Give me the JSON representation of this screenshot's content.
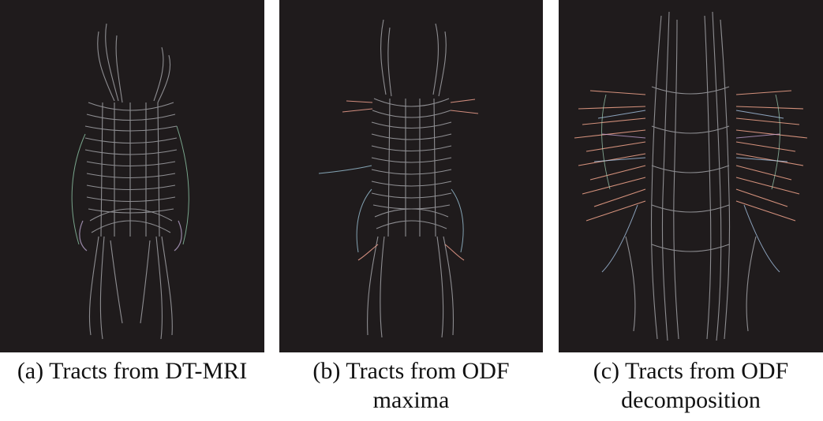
{
  "figure": {
    "panels": [
      {
        "id": "a",
        "caption_line1": "(a) Tracts from DT-MRI",
        "caption_line2": "",
        "palette": {
          "background": "#1f1b1c",
          "fiber": "#9a9a9e",
          "accents": [
            "#8fc7a8",
            "#b7a3c9",
            "#e8b2a5"
          ]
        }
      },
      {
        "id": "b",
        "caption_line1": "(b) Tracts from ODF",
        "caption_line2": "maxima",
        "palette": {
          "background": "#1f1b1c",
          "fiber": "#9a9a9e",
          "accents": [
            "#f0a08e",
            "#9cc4d8",
            "#e9d59a"
          ]
        }
      },
      {
        "id": "c",
        "caption_line1": "(c) Tracts from ODF",
        "caption_line2": "decomposition",
        "palette": {
          "background": "#1f1b1c",
          "fiber": "#9a9a9e",
          "accents": [
            "#f3a58c",
            "#a7c6e6",
            "#c8a6d8",
            "#a9e0c2"
          ]
        }
      }
    ]
  }
}
